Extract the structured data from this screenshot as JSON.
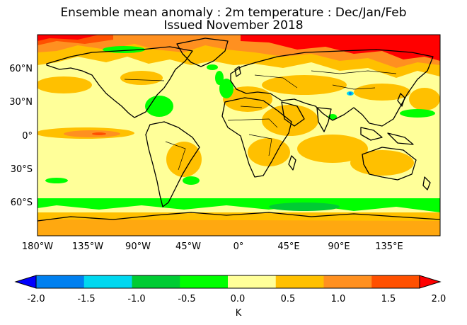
{
  "title": "Ensemble mean anomaly : 2m temperature : Dec/Jan/Feb",
  "subtitle": "Issued November 2018",
  "map": {
    "lat_ticks": [
      "60°N",
      "30°N",
      "0°",
      "30°S",
      "60°S"
    ],
    "lon_ticks": [
      "180°W",
      "135°W",
      "90°W",
      "45°W",
      "0°",
      "45°E",
      "90°E",
      "135°E"
    ]
  },
  "colorbar": {
    "label": "K",
    "ticks": [
      "-2.0",
      "-1.5",
      "-1.0",
      "-0.5",
      "0.0",
      "0.5",
      "1.0",
      "1.5",
      "2.0"
    ],
    "colors": [
      "#0044ff",
      "#0080f0",
      "#00d8f0",
      "#00cc33",
      "#00ff00",
      "#ffff99",
      "#ffc000",
      "#ff9020",
      "#ff5000",
      "#ff0000"
    ],
    "low_color": "#0000ff",
    "high_color": "#ff0000"
  }
}
